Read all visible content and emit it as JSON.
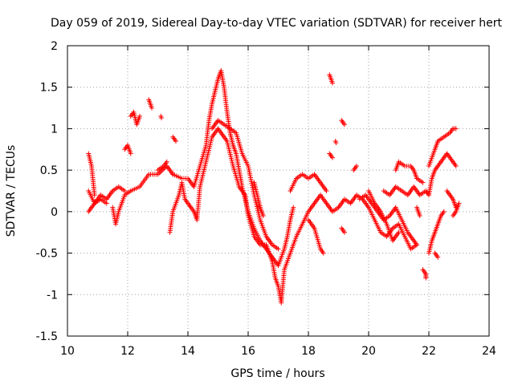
{
  "chart_data": {
    "type": "scatter",
    "title": "Day 059 of 2019, Sidereal Day-to-day VTEC variation (SDTVAR) for receiver hert",
    "xlabel": "GPS time / hours",
    "ylabel": "SDTVAR / TECUs",
    "xlim": [
      10,
      24
    ],
    "ylim": [
      -1.5,
      2
    ],
    "xticks": [
      "10",
      "12",
      "14",
      "16",
      "18",
      "20",
      "22",
      "24"
    ],
    "yticks": [
      "2",
      "1.5",
      "1",
      "0.5",
      "0",
      "-0.5",
      "-1",
      "-1.5"
    ],
    "grid": true,
    "marker": "+",
    "marker_color": "#ff0000",
    "series": [
      {
        "name": "SDTVAR",
        "note": "approximate trace segments read from the plot",
        "segments": [
          [
            [
              10.7,
              0.7
            ],
            [
              10.8,
              0.55
            ],
            [
              10.9,
              0.2
            ]
          ],
          [
            [
              10.7,
              0.25
            ],
            [
              10.9,
              0.1
            ],
            [
              11.1,
              0.2
            ],
            [
              11.3,
              0.15
            ],
            [
              11.5,
              0.25
            ],
            [
              11.7,
              0.3
            ],
            [
              11.9,
              0.25
            ]
          ],
          [
            [
              10.7,
              0.0
            ],
            [
              10.9,
              0.1
            ],
            [
              11.1,
              0.15
            ],
            [
              11.3,
              0.1
            ]
          ],
          [
            [
              11.5,
              0.05
            ],
            [
              11.6,
              -0.15
            ],
            [
              11.7,
              0.0
            ],
            [
              11.9,
              0.2
            ],
            [
              12.1,
              0.25
            ],
            [
              12.4,
              0.3
            ],
            [
              12.7,
              0.45
            ],
            [
              13.0,
              0.45
            ],
            [
              13.3,
              0.55
            ],
            [
              13.5,
              0.45
            ]
          ],
          [
            [
              11.9,
              0.75
            ],
            [
              12.0,
              0.8
            ],
            [
              12.1,
              0.7
            ]
          ],
          [
            [
              12.1,
              1.15
            ],
            [
              12.2,
              1.2
            ],
            [
              12.3,
              1.05
            ],
            [
              12.4,
              1.15
            ]
          ],
          [
            [
              12.7,
              1.35
            ],
            [
              12.8,
              1.25
            ]
          ],
          [
            [
              13.1,
              1.15
            ]
          ],
          [
            [
              13.0,
              0.5
            ],
            [
              13.2,
              0.55
            ],
            [
              13.3,
              0.6
            ]
          ],
          [
            [
              13.5,
              0.9
            ],
            [
              13.6,
              0.85
            ]
          ],
          [
            [
              13.4,
              -0.25
            ],
            [
              13.5,
              0.0
            ],
            [
              13.7,
              0.2
            ],
            [
              13.8,
              0.35
            ],
            [
              13.9,
              0.15
            ],
            [
              14.1,
              0.05
            ],
            [
              14.2,
              0.0
            ],
            [
              14.3,
              -0.1
            ],
            [
              14.4,
              0.3
            ],
            [
              14.6,
              0.6
            ],
            [
              14.8,
              0.9
            ],
            [
              15.0,
              1.0
            ],
            [
              15.1,
              0.95
            ],
            [
              15.3,
              0.85
            ],
            [
              15.5,
              0.55
            ],
            [
              15.7,
              0.3
            ],
            [
              15.9,
              0.2
            ],
            [
              16.0,
              -0.05
            ],
            [
              16.2,
              -0.3
            ],
            [
              16.4,
              -0.4
            ],
            [
              16.6,
              -0.4
            ],
            [
              16.7,
              -0.5
            ],
            [
              16.8,
              -0.6
            ],
            [
              16.9,
              -0.8
            ],
            [
              17.0,
              -0.9
            ],
            [
              17.1,
              -1.1
            ],
            [
              17.2,
              -0.7
            ],
            [
              17.4,
              -0.5
            ],
            [
              17.6,
              -0.3
            ],
            [
              17.8,
              -0.15
            ],
            [
              18.0,
              0.0
            ],
            [
              18.2,
              0.1
            ],
            [
              18.4,
              0.2
            ],
            [
              18.6,
              0.1
            ],
            [
              18.8,
              0.0
            ],
            [
              19.0,
              0.05
            ],
            [
              19.2,
              0.15
            ],
            [
              19.4,
              0.1
            ],
            [
              19.6,
              0.2
            ],
            [
              19.8,
              0.15
            ],
            [
              20.0,
              0.05
            ],
            [
              20.2,
              -0.1
            ],
            [
              20.4,
              -0.25
            ],
            [
              20.6,
              -0.3
            ],
            [
              20.8,
              -0.2
            ],
            [
              21.0,
              -0.15
            ],
            [
              21.2,
              -0.3
            ],
            [
              21.4,
              -0.45
            ],
            [
              21.6,
              -0.4
            ]
          ],
          [
            [
              13.5,
              0.45
            ],
            [
              13.8,
              0.4
            ],
            [
              14.0,
              0.4
            ],
            [
              14.2,
              0.3
            ],
            [
              14.4,
              0.55
            ],
            [
              14.6,
              0.8
            ],
            [
              14.7,
              1.1
            ],
            [
              14.8,
              1.3
            ],
            [
              14.9,
              1.45
            ],
            [
              15.0,
              1.6
            ],
            [
              15.1,
              1.7
            ],
            [
              15.2,
              1.5
            ],
            [
              15.3,
              1.2
            ],
            [
              15.4,
              0.95
            ],
            [
              15.5,
              0.8
            ],
            [
              15.6,
              0.7
            ],
            [
              15.7,
              0.5
            ],
            [
              15.8,
              0.3
            ],
            [
              16.0,
              0.0
            ],
            [
              16.2,
              -0.2
            ],
            [
              16.4,
              -0.35
            ],
            [
              16.6,
              -0.45
            ],
            [
              16.8,
              -0.55
            ],
            [
              17.0,
              -0.65
            ],
            [
              17.2,
              -0.45
            ],
            [
              17.3,
              -0.3
            ],
            [
              17.4,
              -0.1
            ],
            [
              17.5,
              0.05
            ]
          ],
          [
            [
              14.8,
              1.0
            ],
            [
              15.0,
              1.1
            ],
            [
              15.2,
              1.05
            ],
            [
              15.4,
              1.0
            ],
            [
              15.6,
              0.95
            ],
            [
              15.8,
              0.7
            ],
            [
              16.0,
              0.55
            ],
            [
              16.2,
              0.2
            ],
            [
              16.4,
              -0.1
            ],
            [
              16.6,
              -0.3
            ],
            [
              16.8,
              -0.4
            ],
            [
              17.0,
              -0.45
            ]
          ],
          [
            [
              16.2,
              0.35
            ],
            [
              16.3,
              0.2
            ],
            [
              16.4,
              0.05
            ],
            [
              16.5,
              -0.05
            ]
          ],
          [
            [
              17.4,
              0.25
            ],
            [
              17.6,
              0.4
            ],
            [
              17.8,
              0.45
            ],
            [
              18.0,
              0.4
            ],
            [
              18.2,
              0.45
            ],
            [
              18.4,
              0.35
            ],
            [
              18.6,
              0.25
            ]
          ],
          [
            [
              18.0,
              -0.1
            ],
            [
              18.2,
              -0.2
            ],
            [
              18.4,
              -0.45
            ],
            [
              18.5,
              -0.5
            ]
          ],
          [
            [
              18.7,
              1.65
            ],
            [
              18.8,
              1.55
            ]
          ],
          [
            [
              18.7,
              0.7
            ],
            [
              18.8,
              0.65
            ]
          ],
          [
            [
              18.9,
              0.85
            ]
          ],
          [
            [
              19.1,
              1.1
            ],
            [
              19.2,
              1.05
            ]
          ],
          [
            [
              19.1,
              -0.2
            ],
            [
              19.2,
              -0.25
            ]
          ],
          [
            [
              19.5,
              0.5
            ],
            [
              19.6,
              0.55
            ]
          ],
          [
            [
              19.7,
              0.15
            ],
            [
              19.9,
              0.2
            ],
            [
              20.1,
              0.1
            ],
            [
              20.3,
              0.0
            ],
            [
              20.5,
              -0.1
            ],
            [
              20.7,
              -0.05
            ],
            [
              20.9,
              0.05
            ],
            [
              21.1,
              -0.1
            ],
            [
              21.3,
              -0.25
            ],
            [
              21.5,
              -0.35
            ],
            [
              21.6,
              -0.4
            ]
          ],
          [
            [
              20.0,
              0.25
            ],
            [
              20.2,
              0.1
            ],
            [
              20.4,
              0.0
            ],
            [
              20.6,
              -0.15
            ],
            [
              20.8,
              -0.35
            ],
            [
              21.0,
              -0.25
            ]
          ],
          [
            [
              20.5,
              0.25
            ],
            [
              20.7,
              0.2
            ],
            [
              20.9,
              0.3
            ],
            [
              21.1,
              0.25
            ],
            [
              21.3,
              0.2
            ],
            [
              21.5,
              0.3
            ],
            [
              21.7,
              0.2
            ],
            [
              21.9,
              0.25
            ],
            [
              22.0,
              0.2
            ]
          ],
          [
            [
              20.9,
              0.5
            ],
            [
              21.0,
              0.6
            ],
            [
              21.2,
              0.55
            ],
            [
              21.4,
              0.55
            ],
            [
              21.5,
              0.5
            ],
            [
              21.6,
              0.4
            ],
            [
              21.8,
              0.35
            ]
          ],
          [
            [
              21.6,
              0.05
            ],
            [
              21.7,
              -0.05
            ]
          ],
          [
            [
              21.8,
              -0.7
            ],
            [
              21.9,
              -0.75
            ],
            [
              21.9,
              -0.8
            ]
          ],
          [
            [
              22.0,
              -0.5
            ],
            [
              22.1,
              -0.35
            ],
            [
              22.2,
              -0.25
            ],
            [
              22.3,
              -0.15
            ],
            [
              22.4,
              -0.05
            ],
            [
              22.5,
              0.0
            ]
          ],
          [
            [
              22.2,
              -0.5
            ],
            [
              22.3,
              -0.55
            ]
          ],
          [
            [
              22.0,
              0.2
            ],
            [
              22.1,
              0.4
            ],
            [
              22.2,
              0.5
            ],
            [
              22.4,
              0.6
            ],
            [
              22.6,
              0.7
            ],
            [
              22.8,
              0.6
            ],
            [
              22.9,
              0.55
            ]
          ],
          [
            [
              22.0,
              0.55
            ],
            [
              22.2,
              0.75
            ],
            [
              22.3,
              0.85
            ],
            [
              22.5,
              0.9
            ],
            [
              22.7,
              0.95
            ],
            [
              22.8,
              1.0
            ],
            [
              22.9,
              1.0
            ]
          ],
          [
            [
              22.6,
              0.25
            ],
            [
              22.7,
              0.2
            ],
            [
              22.8,
              0.15
            ],
            [
              22.9,
              0.05
            ]
          ],
          [
            [
              22.8,
              -0.05
            ],
            [
              22.9,
              0.0
            ],
            [
              23.0,
              0.1
            ]
          ]
        ]
      }
    ]
  }
}
